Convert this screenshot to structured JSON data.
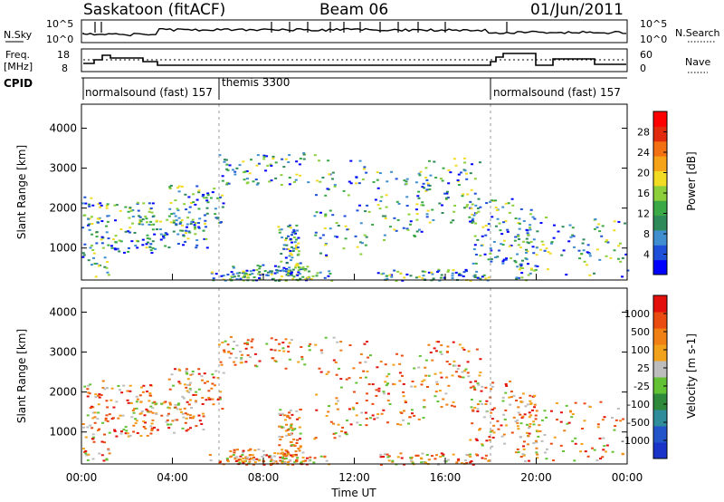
{
  "header": {
    "station": "Saskatoon (fitACF)",
    "beam": "Beam 06",
    "date": "01/Jun/2011"
  },
  "noise_panel": {
    "left_label": "N.Sky",
    "left_ticks": [
      "10^5",
      "10^0"
    ],
    "right_label": "N.Search",
    "right_ticks": [
      "10^5",
      "10^0"
    ]
  },
  "freq_panel": {
    "left_label_line1": "Freq.",
    "left_label_line2": "[MHz]",
    "left_ticks": [
      "18",
      "8"
    ],
    "right_label": "Nave",
    "right_ticks": [
      "60",
      "0"
    ]
  },
  "cpid_panel": {
    "label": "CPID",
    "segments": [
      {
        "label": "normalsound (fast) 157",
        "start_hour": 0,
        "end_hour": 6
      },
      {
        "label": "themis 3300",
        "start_hour": 6,
        "end_hour": 18
      },
      {
        "label": "normalsound (fast) 157",
        "start_hour": 18,
        "end_hour": 24
      }
    ]
  },
  "chart_data": [
    {
      "type": "heatmap",
      "title": "",
      "xlabel": "Time UT",
      "ylabel": "Slant Range [km]",
      "xlim": [
        0,
        24
      ],
      "ylim": [
        200,
        4600
      ],
      "x_tick_labels": [
        "00:00",
        "04:00",
        "08:00",
        "12:00",
        "16:00",
        "20:00",
        "00:00"
      ],
      "y_ticks": [
        1000,
        2000,
        3000,
        4000
      ],
      "colorbar": {
        "label": "Power [dB]",
        "ticks": [
          "28",
          "24",
          "20",
          "16",
          "12",
          "8",
          "4"
        ],
        "range": [
          0,
          30
        ],
        "colors": [
          "#0000ff",
          "#1d4fd8",
          "#3f8fd0",
          "#2f8a5a",
          "#39a845",
          "#8ccf3a",
          "#f2dc23",
          "#f7a31a",
          "#f26f12",
          "#e22b0c",
          "#ff0000"
        ]
      }
    },
    {
      "type": "heatmap",
      "title": "",
      "xlabel": "Time UT",
      "ylabel": "Slant Range [km]",
      "xlim": [
        0,
        24
      ],
      "ylim": [
        200,
        4600
      ],
      "x_tick_labels": [
        "00:00",
        "04:00",
        "08:00",
        "12:00",
        "16:00",
        "20:00",
        "00:00"
      ],
      "y_ticks": [
        1000,
        2000,
        3000,
        4000
      ],
      "colorbar": {
        "label": "Velocity [m s-1]",
        "ticks": [
          "1000",
          "500",
          "100",
          "25",
          "-25",
          "-100",
          "-500",
          "-1000"
        ],
        "colors": [
          "#1a33c8",
          "#2255c9",
          "#2f8c9a",
          "#2e8a3a",
          "#63c233",
          "#bdbdbd",
          "#f2a21a",
          "#f07f14",
          "#ea4b10",
          "#e20f0a"
        ]
      }
    }
  ],
  "colors": {
    "axis": "#000000",
    "dashed_divider": "#999999",
    "ground_scatter": "#aaaaaa"
  }
}
